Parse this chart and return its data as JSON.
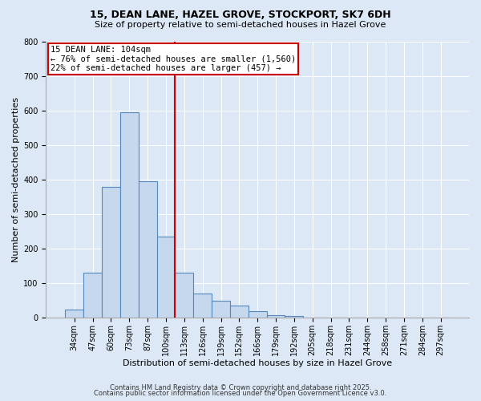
{
  "title": "15, DEAN LANE, HAZEL GROVE, STOCKPORT, SK7 6DH",
  "subtitle": "Size of property relative to semi-detached houses in Hazel Grove",
  "xlabel": "Distribution of semi-detached houses by size in Hazel Grove",
  "ylabel": "Number of semi-detached properties",
  "bar_labels": [
    "34sqm",
    "47sqm",
    "60sqm",
    "73sqm",
    "87sqm",
    "100sqm",
    "113sqm",
    "126sqm",
    "139sqm",
    "152sqm",
    "166sqm",
    "179sqm",
    "192sqm",
    "205sqm",
    "218sqm",
    "231sqm",
    "244sqm",
    "258sqm",
    "271sqm",
    "284sqm",
    "297sqm"
  ],
  "bar_values": [
    25,
    130,
    380,
    595,
    395,
    235,
    130,
    70,
    50,
    35,
    20,
    8,
    5,
    0,
    0,
    0,
    0,
    0,
    0,
    0,
    0
  ],
  "bar_color": "#c5d8ee",
  "bar_edge_color": "#5588bb",
  "vline_color": "#cc0000",
  "vline_x": 5.5,
  "annotation_title": "15 DEAN LANE: 104sqm",
  "annotation_line1": "← 76% of semi-detached houses are smaller (1,560)",
  "annotation_line2": "22% of semi-detached houses are larger (457) →",
  "box_color": "#ffffff",
  "box_edge_color": "#cc0000",
  "ylim": [
    0,
    800
  ],
  "yticks": [
    0,
    100,
    200,
    300,
    400,
    500,
    600,
    700,
    800
  ],
  "footer1": "Contains HM Land Registry data © Crown copyright and database right 2025.",
  "footer2": "Contains public sector information licensed under the Open Government Licence v3.0.",
  "background_color": "#dce8f5",
  "plot_bg_color": "#dce8f5",
  "grid_color": "#ffffff",
  "title_fontsize": 9,
  "subtitle_fontsize": 8,
  "axis_label_fontsize": 8,
  "tick_fontsize": 7,
  "annotation_fontsize": 7.5,
  "footer_fontsize": 6
}
